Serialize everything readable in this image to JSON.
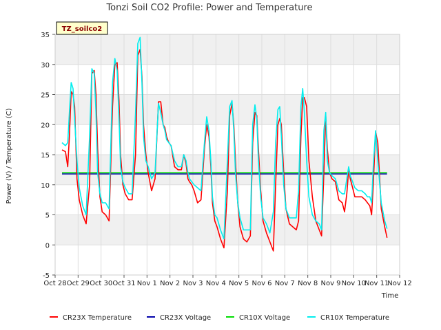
{
  "chart_data": {
    "type": "line",
    "title": "Tonzi Soil CO2 Profile: Power and Temperature",
    "xlabel": "Time",
    "ylabel": "Power (V) / Temperature (C)",
    "annotation": "TZ_soilco2",
    "ylim": [
      -5,
      35
    ],
    "xlim": [
      0,
      15
    ],
    "x_ticks": [
      0,
      1,
      2,
      3,
      4,
      5,
      6,
      7,
      8,
      9,
      10,
      11,
      12,
      13,
      14,
      15
    ],
    "x_tick_labels": [
      "Oct 28",
      "Oct 29",
      "Oct 30",
      "Oct 31",
      "Nov 1",
      "Nov 2",
      "Nov 3",
      "Nov 4",
      "Nov 5",
      "Nov 6",
      "Nov 7",
      "Nov 8",
      "Nov 9",
      "Nov 10",
      "Nov 11",
      "Nov 12"
    ],
    "y_ticks": [
      -5,
      0,
      5,
      10,
      15,
      20,
      25,
      30,
      35
    ],
    "y_tick_labels": [
      "-5",
      "0",
      "5",
      "10",
      "15",
      "20",
      "25",
      "30",
      "35"
    ],
    "grid": true,
    "legend_position": "bottom",
    "series": [
      {
        "name": "CR23X Temperature",
        "color": "#ff0000",
        "x": [
          0.3,
          0.45,
          0.55,
          0.62,
          0.7,
          0.78,
          0.85,
          0.95,
          1.05,
          1.2,
          1.35,
          1.5,
          1.6,
          1.7,
          1.78,
          1.85,
          1.95,
          2.05,
          2.2,
          2.35,
          2.5,
          2.6,
          2.7,
          2.78,
          2.85,
          2.95,
          3.05,
          3.2,
          3.35,
          3.5,
          3.6,
          3.7,
          3.78,
          3.85,
          3.95,
          4.05,
          4.2,
          4.35,
          4.5,
          4.6,
          4.7,
          4.78,
          4.85,
          4.95,
          5.05,
          5.2,
          5.35,
          5.5,
          5.6,
          5.7,
          5.78,
          5.85,
          5.95,
          6.05,
          6.2,
          6.35,
          6.5,
          6.6,
          6.7,
          6.78,
          6.85,
          6.95,
          7.05,
          7.2,
          7.35,
          7.5,
          7.6,
          7.7,
          7.78,
          7.85,
          7.95,
          8.05,
          8.2,
          8.35,
          8.5,
          8.6,
          8.7,
          8.78,
          8.85,
          8.95,
          9.05,
          9.2,
          9.35,
          9.5,
          9.6,
          9.7,
          9.78,
          9.85,
          9.95,
          10.05,
          10.2,
          10.35,
          10.5,
          10.6,
          10.7,
          10.78,
          10.85,
          10.95,
          11.05,
          11.2,
          11.35,
          11.5,
          11.6,
          11.7,
          11.78,
          11.85,
          11.95,
          12.05,
          12.2,
          12.35,
          12.5,
          12.6,
          12.7,
          12.78,
          12.85,
          12.95,
          13.05,
          13.2,
          13.35,
          13.5,
          13.6,
          13.7,
          13.78,
          13.85,
          13.95,
          14.05,
          14.2,
          14.35,
          14.45
        ],
        "y": [
          15.8,
          15.5,
          13.0,
          18.0,
          25.5,
          25.0,
          23.0,
          11.0,
          7.5,
          5.0,
          3.5,
          10.0,
          28.5,
          29.0,
          25.0,
          16.0,
          8.0,
          5.5,
          5.0,
          4.0,
          23.0,
          30.0,
          30.3,
          24.0,
          15.0,
          10.0,
          8.5,
          7.5,
          7.5,
          15.0,
          31.5,
          32.5,
          28.0,
          20.0,
          15.0,
          12.0,
          9.0,
          11.0,
          23.8,
          23.8,
          20.0,
          19.5,
          18.0,
          17.0,
          16.5,
          13.0,
          12.5,
          12.5,
          15.0,
          13.5,
          11.0,
          10.5,
          10.0,
          9.0,
          7.0,
          7.5,
          16.0,
          20.0,
          18.0,
          13.0,
          7.0,
          4.0,
          3.0,
          1.0,
          -0.5,
          9.0,
          21.5,
          23.5,
          20.0,
          14.0,
          7.0,
          3.0,
          1.0,
          0.5,
          1.5,
          17.0,
          22.0,
          21.5,
          16.0,
          9.0,
          4.0,
          2.0,
          0.5,
          -1.0,
          10.0,
          20.0,
          21.0,
          20.0,
          12.0,
          6.0,
          3.5,
          3.0,
          2.5,
          4.0,
          18.0,
          24.5,
          24.5,
          23.0,
          14.0,
          8.0,
          4.0,
          2.5,
          1.5,
          12.0,
          21.5,
          16.0,
          12.0,
          11.0,
          10.5,
          7.5,
          7.0,
          5.5,
          8.5,
          12.5,
          11.0,
          9.5,
          8.0,
          8.0,
          8.0,
          7.5,
          7.0,
          6.5,
          5.0,
          10.0,
          18.8,
          17.0,
          6.0,
          3.0,
          1.2
        ]
      },
      {
        "name": "CR23X Voltage",
        "color": "#0000aa",
        "x": [
          0.3,
          14.45
        ],
        "y": [
          11.8,
          11.8
        ]
      },
      {
        "name": "CR10X Voltage",
        "color": "#00dd00",
        "x": [
          0.3,
          14.45
        ],
        "y": [
          12.0,
          12.0
        ]
      },
      {
        "name": "CR10X Temperature",
        "color": "#00eeee",
        "x": [
          0.3,
          0.45,
          0.55,
          0.62,
          0.7,
          0.78,
          0.85,
          0.95,
          1.05,
          1.2,
          1.35,
          1.5,
          1.6,
          1.7,
          1.78,
          1.85,
          1.95,
          2.05,
          2.2,
          2.35,
          2.5,
          2.6,
          2.7,
          2.78,
          2.85,
          2.95,
          3.05,
          3.2,
          3.35,
          3.5,
          3.6,
          3.7,
          3.78,
          3.85,
          3.95,
          4.05,
          4.2,
          4.35,
          4.5,
          4.6,
          4.7,
          4.78,
          4.85,
          4.95,
          5.05,
          5.2,
          5.35,
          5.5,
          5.6,
          5.7,
          5.78,
          5.85,
          5.95,
          6.05,
          6.2,
          6.35,
          6.5,
          6.6,
          6.7,
          6.78,
          6.85,
          6.95,
          7.05,
          7.2,
          7.35,
          7.5,
          7.6,
          7.7,
          7.78,
          7.85,
          7.95,
          8.05,
          8.2,
          8.35,
          8.5,
          8.6,
          8.7,
          8.78,
          8.85,
          8.95,
          9.05,
          9.2,
          9.35,
          9.5,
          9.6,
          9.7,
          9.78,
          9.85,
          9.95,
          10.05,
          10.2,
          10.35,
          10.5,
          10.6,
          10.7,
          10.78,
          10.85,
          10.95,
          11.05,
          11.2,
          11.35,
          11.5,
          11.6,
          11.7,
          11.78,
          11.85,
          11.95,
          12.05,
          12.2,
          12.35,
          12.5,
          12.6,
          12.7,
          12.78,
          12.85,
          12.95,
          13.05,
          13.2,
          13.35,
          13.5,
          13.6,
          13.7,
          13.78,
          13.85,
          13.95,
          14.05,
          14.2,
          14.35,
          14.45
        ],
        "y": [
          17.0,
          16.5,
          17.0,
          22.0,
          27.0,
          26.0,
          21.0,
          14.0,
          9.5,
          6.5,
          5.0,
          18.0,
          29.3,
          28.5,
          22.0,
          12.0,
          8.5,
          7.0,
          7.0,
          6.0,
          27.0,
          31.0,
          29.0,
          21.0,
          13.0,
          10.5,
          9.5,
          8.5,
          8.5,
          22.0,
          33.5,
          34.5,
          27.0,
          18.0,
          14.0,
          13.0,
          11.0,
          12.0,
          23.5,
          22.0,
          20.0,
          19.0,
          17.5,
          17.0,
          16.5,
          14.0,
          13.0,
          13.0,
          15.0,
          14.0,
          12.0,
          11.0,
          10.5,
          10.0,
          9.5,
          9.0,
          17.0,
          21.3,
          19.0,
          14.0,
          8.0,
          5.0,
          4.5,
          2.5,
          1.0,
          14.0,
          23.0,
          24.0,
          19.0,
          12.0,
          7.0,
          4.5,
          2.5,
          2.5,
          2.5,
          20.0,
          23.3,
          21.0,
          14.0,
          8.0,
          4.5,
          3.5,
          2.0,
          5.5,
          17.0,
          22.5,
          23.0,
          18.0,
          10.0,
          6.0,
          4.5,
          4.5,
          4.5,
          9.0,
          23.0,
          26.0,
          22.0,
          14.0,
          8.0,
          5.0,
          4.0,
          3.5,
          2.5,
          19.0,
          22.0,
          14.0,
          12.0,
          11.5,
          11.0,
          9.0,
          8.5,
          8.5,
          11.0,
          13.0,
          11.5,
          10.5,
          9.5,
          9.0,
          9.0,
          8.5,
          8.0,
          8.0,
          7.0,
          13.0,
          19.0,
          14.0,
          7.0,
          4.0,
          2.7
        ]
      }
    ]
  }
}
